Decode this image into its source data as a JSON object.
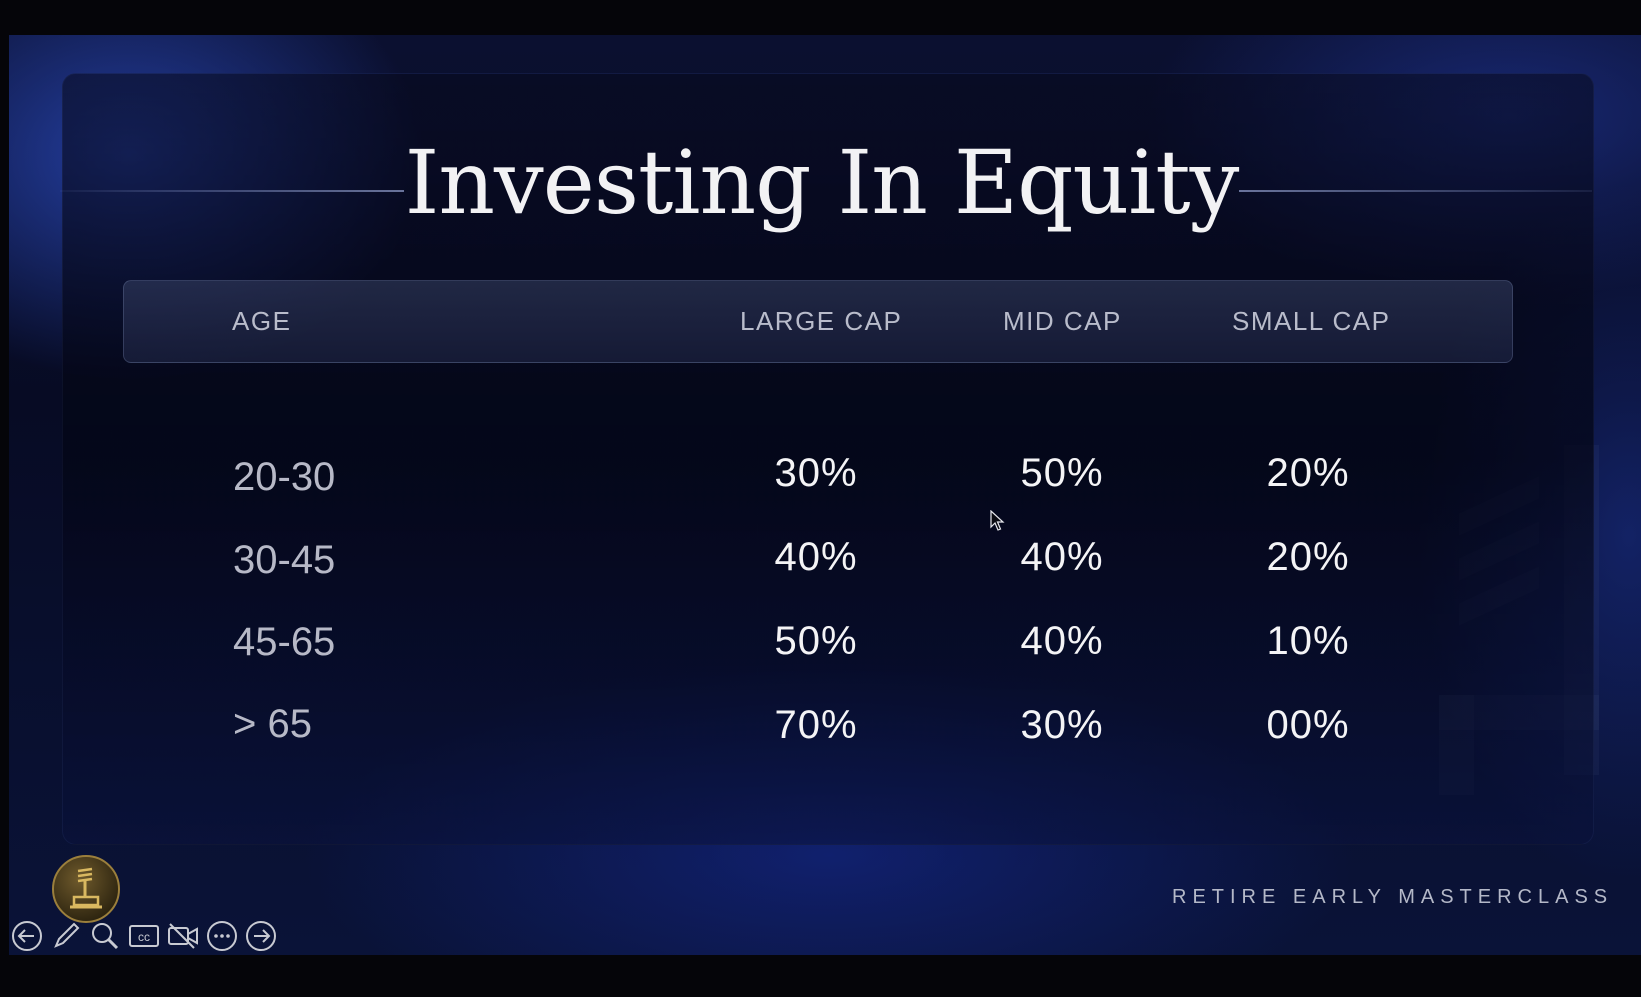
{
  "slide": {
    "title": "Investing In Equity",
    "brand": "RETIRE EARLY MASTERCLASS"
  },
  "table": {
    "headers": [
      "AGE",
      "LARGE CAP",
      "MID CAP",
      "SMALL CAP"
    ],
    "rows": [
      {
        "age": "20-30",
        "large_cap": "30%",
        "mid_cap": "50%",
        "small_cap": "20%"
      },
      {
        "age": "30-45",
        "large_cap": "40%",
        "mid_cap": "40%",
        "small_cap": "20%"
      },
      {
        "age": "45-65",
        "large_cap": "50%",
        "mid_cap": "40%",
        "small_cap": "10%"
      },
      {
        "age": "> 65",
        "large_cap": "70%",
        "mid_cap": "30%",
        "small_cap": "00%"
      }
    ]
  },
  "toolbar": {
    "buttons": [
      "previous-slide-icon",
      "pen-icon",
      "zoom-icon",
      "closed-captions-icon",
      "camera-off-icon",
      "more-options-icon",
      "next-slide-icon"
    ]
  },
  "colors": {
    "background": "#070b24",
    "accent": "#2a4bc0",
    "logo": "#9b7f3c"
  }
}
